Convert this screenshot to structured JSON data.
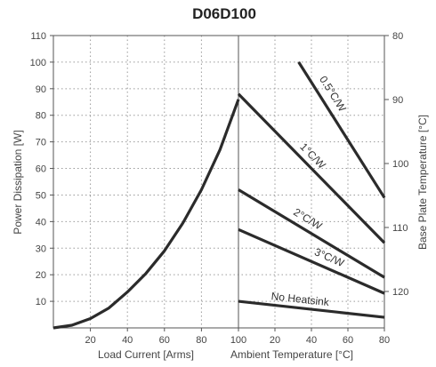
{
  "chart_data": {
    "type": "line",
    "title": "D06D100",
    "left_panel": {
      "xlabel": "Load Current [Arms]",
      "ylabel": "Power Dissipation [W]",
      "xlim": [
        0,
        100
      ],
      "ylim": [
        0,
        110
      ],
      "x_ticks": [
        "20",
        "40",
        "60",
        "80",
        "100"
      ],
      "y_ticks": [
        "10",
        "20",
        "30",
        "40",
        "50",
        "60",
        "70",
        "80",
        "90",
        "100",
        "110"
      ],
      "series": [
        {
          "x": [
            0,
            10,
            20,
            30,
            40,
            50,
            60,
            70,
            80,
            90,
            100
          ],
          "y": [
            0,
            1,
            3.5,
            7.5,
            13.5,
            20.5,
            29,
            39.5,
            52,
            67,
            86
          ]
        }
      ]
    },
    "right_panel": {
      "xlabel": "Ambient Temperature [°C]",
      "ylabel": "Base Plate Temperature [°C]",
      "xlim": [
        0,
        80
      ],
      "x_ticks": [
        "20",
        "40",
        "60",
        "80"
      ],
      "right_axis_ticks": [
        "80",
        "90",
        "100",
        "110",
        "120"
      ],
      "series": [
        {
          "name": "0.5°C/W",
          "x": [
            33,
            80
          ],
          "y": [
            100,
            49
          ]
        },
        {
          "name": "1°C/W",
          "x": [
            0,
            80
          ],
          "y": [
            88,
            32
          ]
        },
        {
          "name": "2°C/W",
          "x": [
            0,
            80
          ],
          "y": [
            52,
            19
          ]
        },
        {
          "name": "3°C/W",
          "x": [
            0,
            80
          ],
          "y": [
            37,
            13
          ]
        },
        {
          "name": "No Heatsink",
          "x": [
            0,
            80
          ],
          "y": [
            10,
            4
          ]
        }
      ]
    },
    "grid": true
  }
}
